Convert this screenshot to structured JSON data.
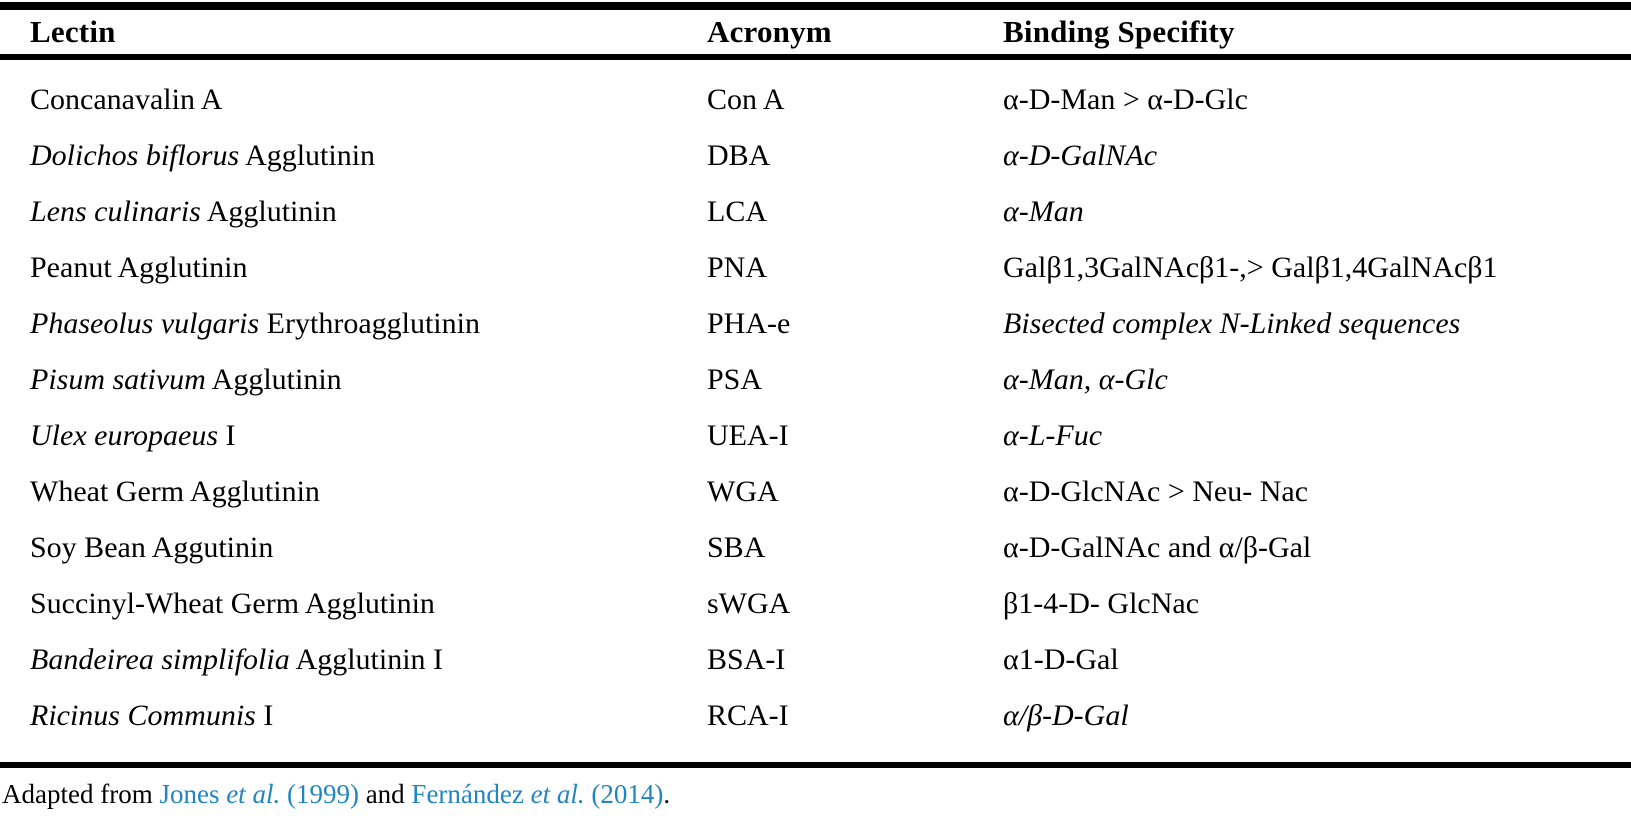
{
  "colors": {
    "link_blue": "#2385c0",
    "text": "#000000",
    "rule": "#000000"
  },
  "table": {
    "headers": [
      "Lectin",
      "Acronym",
      "Binding Specifity"
    ],
    "rows": [
      {
        "lectin_italic": "",
        "lectin_roman": "Concanavalin A",
        "acronym": "Con A",
        "spec_italic": "",
        "spec_roman": "α-D-Man > α-D-Glc"
      },
      {
        "lectin_italic": "Dolichos biflorus",
        "lectin_roman": " Agglutinin",
        "acronym": "DBA",
        "spec_italic": "α-D-GalNAc",
        "spec_roman": ""
      },
      {
        "lectin_italic": "Lens culinaris",
        "lectin_roman": " Agglutinin",
        "acronym": "LCA",
        "spec_italic": "α-Man",
        "spec_roman": ""
      },
      {
        "lectin_italic": "",
        "lectin_roman": "Peanut Agglutinin",
        "acronym": "PNA",
        "spec_italic": "",
        "spec_roman": "Galβ1,3GalNAcβ1-,> Galβ1,4GalNAcβ1"
      },
      {
        "lectin_italic": "Phaseolus vulgaris",
        "lectin_roman": " Erythroagglutinin",
        "acronym": "PHA-e",
        "spec_italic": "Bisected complex N-Linked sequences",
        "spec_roman": ""
      },
      {
        "lectin_italic": "Pisum sativum",
        "lectin_roman": " Agglutinin",
        "acronym": "PSA",
        "spec_italic": "α-Man, α-Glc",
        "spec_roman": ""
      },
      {
        "lectin_italic": "Ulex europaeus",
        "lectin_roman": " I",
        "acronym": "UEA-I",
        "spec_italic": "α-L-Fuc",
        "spec_roman": ""
      },
      {
        "lectin_italic": "",
        "lectin_roman": "Wheat Germ Agglutinin",
        "acronym": "WGA",
        "spec_italic": "",
        "spec_roman": "α-D-GlcNAc > Neu- Nac"
      },
      {
        "lectin_italic": "",
        "lectin_roman": "Soy Bean Aggutinin",
        "acronym": "SBA",
        "spec_italic": "",
        "spec_roman": "α-D-GalNAc and α/β-Gal"
      },
      {
        "lectin_italic": "",
        "lectin_roman": "Succinyl-Wheat Germ Agglutinin",
        "acronym": "sWGA",
        "spec_italic": "",
        "spec_roman": "β1-4-D- GlcNac"
      },
      {
        "lectin_italic": "Bandeirea simplifolia",
        "lectin_roman": " Agglutinin I",
        "acronym": "BSA-I",
        "spec_italic": "",
        "spec_roman": "α1-D-Gal"
      },
      {
        "lectin_italic": "Ricinus Communis",
        "lectin_roman": " I",
        "acronym": "RCA-I",
        "spec_italic": "α/β-D-Gal",
        "spec_roman": ""
      }
    ]
  },
  "footer": {
    "prefix": "Adapted from ",
    "citation1": {
      "name": "Jones ",
      "etal": "et al.",
      "year": " (1999)"
    },
    "conjunction": " and ",
    "citation2": {
      "name": "Fernández ",
      "etal": "et al.",
      "year": " (2014)"
    },
    "suffix": "."
  }
}
